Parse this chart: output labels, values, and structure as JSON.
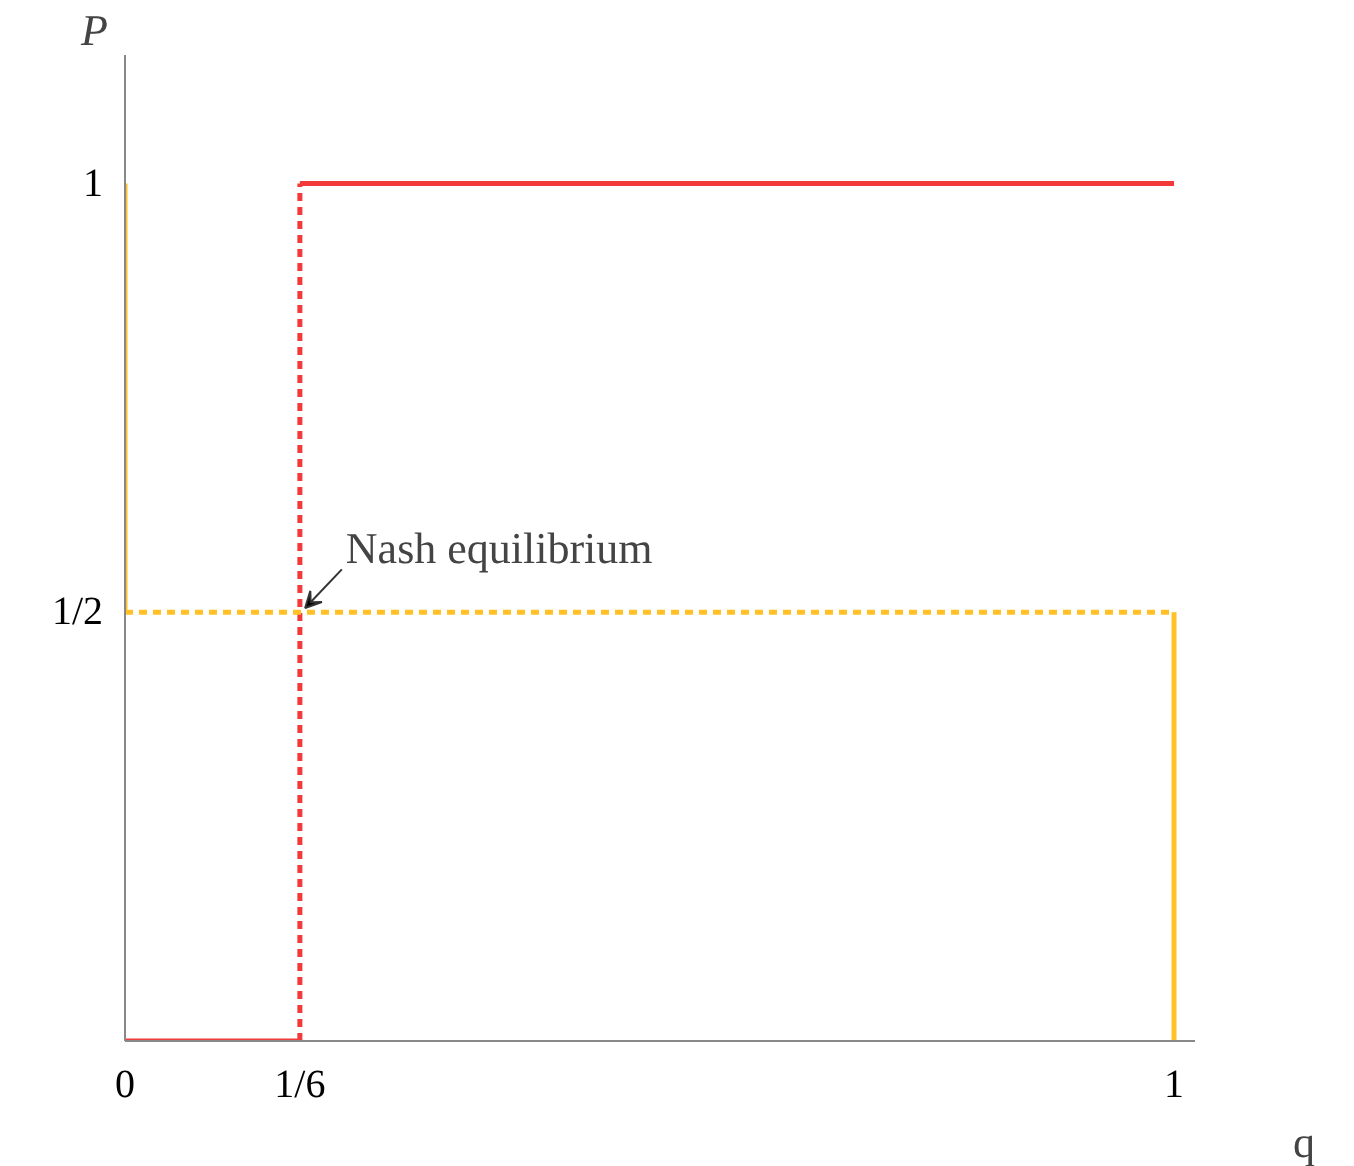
{
  "chart_data": {
    "type": "line",
    "xlabel": "q",
    "ylabel": "P",
    "xlim": [
      0,
      1.02
    ],
    "ylim": [
      0,
      1.15
    ],
    "xticks": [
      0,
      {
        "value": 0.1667,
        "label": "1/6"
      },
      1
    ],
    "yticks": [
      {
        "value": 0.5,
        "label": "1/2"
      },
      1
    ],
    "grid": false,
    "marker": "none",
    "series": [
      {
        "color": "#f23a3a",
        "x": [
          0,
          0.1667
        ],
        "values": [
          0,
          0
        ],
        "line_style": "solid"
      },
      {
        "color": "#f23a3a",
        "x": [
          0.1667,
          0.1667
        ],
        "values": [
          0,
          1
        ],
        "line_style": "dashed"
      },
      {
        "color": "#f23a3a",
        "x": [
          0.1667,
          1
        ],
        "values": [
          1,
          1
        ],
        "line_style": "solid"
      },
      {
        "color": "#ffc125",
        "x": [
          0,
          0
        ],
        "values": [
          0.5,
          1
        ],
        "line_style": "solid"
      },
      {
        "color": "#ffc125",
        "x": [
          0,
          1
        ],
        "values": [
          0.5,
          0.5
        ],
        "line_style": "dashed"
      },
      {
        "color": "#ffc125",
        "x": [
          1,
          1
        ],
        "values": [
          0,
          0.5
        ],
        "line_style": "solid"
      }
    ],
    "annotations": [
      {
        "text": "Nash equilibrium",
        "x": 0.1667,
        "y": 0.5
      }
    ]
  }
}
